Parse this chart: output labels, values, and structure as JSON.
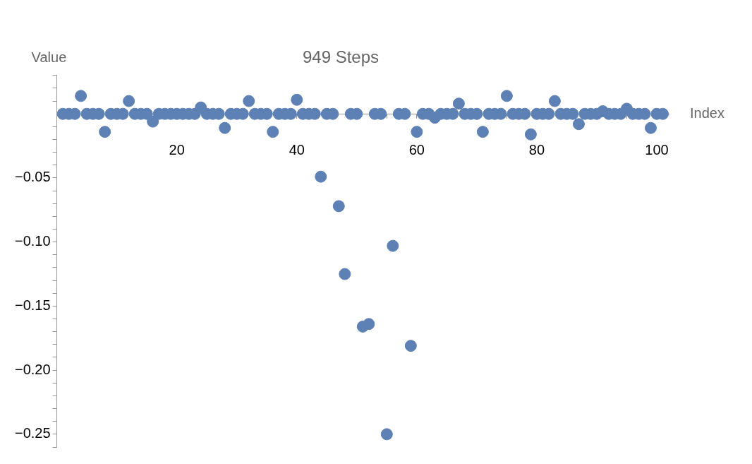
{
  "chart_data": {
    "type": "scatter",
    "title": "949 Steps",
    "xlabel": "Index",
    "ylabel": "Value",
    "marker": "circle",
    "grid": false,
    "legend": false,
    "x": [
      1,
      2,
      3,
      4,
      5,
      6,
      7,
      8,
      9,
      10,
      11,
      12,
      13,
      14,
      15,
      16,
      17,
      18,
      19,
      20,
      21,
      22,
      23,
      24,
      25,
      26,
      27,
      28,
      29,
      30,
      31,
      32,
      33,
      34,
      35,
      36,
      37,
      38,
      39,
      40,
      41,
      42,
      43,
      44,
      45,
      46,
      47,
      48,
      49,
      50,
      51,
      52,
      53,
      54,
      55,
      56,
      57,
      58,
      59,
      60,
      61,
      62,
      63,
      64,
      65,
      66,
      67,
      68,
      69,
      70,
      71,
      72,
      73,
      74,
      75,
      76,
      77,
      78,
      79,
      80,
      81,
      82,
      83,
      84,
      85,
      86,
      87,
      88,
      89,
      90,
      91,
      92,
      93,
      94,
      95,
      96,
      97,
      98,
      99,
      100,
      101
    ],
    "series": [
      {
        "color": "#5e81b5",
        "values": [
          0,
          0,
          0,
          0.014,
          0,
          0,
          0,
          -0.014,
          0,
          0,
          0,
          0.01,
          0,
          0,
          0,
          -0.006,
          0,
          0,
          0,
          0,
          0,
          0,
          0,
          0.005,
          0,
          0,
          0,
          -0.011,
          0,
          0,
          0,
          0.01,
          0,
          0,
          0,
          -0.014,
          0,
          0,
          0,
          0.011,
          0,
          0,
          0,
          -0.049,
          0,
          0,
          -0.072,
          -0.125,
          0,
          0,
          -0.166,
          -0.164,
          0,
          0,
          -0.25,
          -0.103,
          0,
          0,
          -0.181,
          -0.014,
          0,
          0,
          -0.003,
          0,
          0,
          0,
          0.008,
          0,
          0,
          0,
          -0.014,
          0,
          0,
          0,
          0.014,
          0,
          0,
          0,
          -0.016,
          0,
          0,
          0,
          0.01,
          0,
          0,
          0,
          -0.008,
          0,
          0,
          0,
          0.002,
          0,
          0,
          0,
          0.004,
          0,
          0,
          0,
          -0.011,
          0,
          0
        ]
      }
    ],
    "xlim": [
      0,
      102
    ],
    "xticks": [
      {
        "value": 5,
        "label": null
      },
      {
        "value": 10,
        "label": null
      },
      {
        "value": 15,
        "label": null
      },
      20,
      {
        "value": 25,
        "label": null
      },
      {
        "value": 30,
        "label": null
      },
      {
        "value": 35,
        "label": null
      },
      40,
      {
        "value": 45,
        "label": null
      },
      {
        "value": 50,
        "label": null
      },
      {
        "value": 55,
        "label": null
      },
      60,
      {
        "value": 65,
        "label": null
      },
      {
        "value": 70,
        "label": null
      },
      {
        "value": 75,
        "label": null
      },
      80,
      {
        "value": 85,
        "label": null
      },
      {
        "value": 90,
        "label": null
      },
      {
        "value": 95,
        "label": null
      },
      100
    ],
    "ylim": [
      -0.26,
      0.03
    ],
    "yticks": [
      {
        "value": 0.03,
        "label": null
      },
      {
        "value": 0.02,
        "label": null
      },
      {
        "value": 0.01,
        "label": null
      },
      {
        "value": -0.01,
        "label": null
      },
      {
        "value": -0.02,
        "label": null
      },
      {
        "value": -0.03,
        "label": null
      },
      {
        "value": -0.04,
        "label": null
      },
      {
        "value": -0.05,
        "label": "−0.05"
      },
      {
        "value": -0.06,
        "label": null
      },
      {
        "value": -0.07,
        "label": null
      },
      {
        "value": -0.08,
        "label": null
      },
      {
        "value": -0.09,
        "label": null
      },
      {
        "value": -0.1,
        "label": "−0.10"
      },
      {
        "value": -0.11,
        "label": null
      },
      {
        "value": -0.12,
        "label": null
      },
      {
        "value": -0.13,
        "label": null
      },
      {
        "value": -0.14,
        "label": null
      },
      {
        "value": -0.15,
        "label": "−0.15"
      },
      {
        "value": -0.16,
        "label": null
      },
      {
        "value": -0.17,
        "label": null
      },
      {
        "value": -0.18,
        "label": null
      },
      {
        "value": -0.19,
        "label": null
      },
      {
        "value": -0.2,
        "label": "−0.20"
      },
      {
        "value": -0.21,
        "label": null
      },
      {
        "value": -0.22,
        "label": null
      },
      {
        "value": -0.23,
        "label": null
      },
      {
        "value": -0.24,
        "label": null
      },
      {
        "value": -0.25,
        "label": "−0.25"
      },
      {
        "value": -0.26,
        "label": null
      }
    ]
  }
}
